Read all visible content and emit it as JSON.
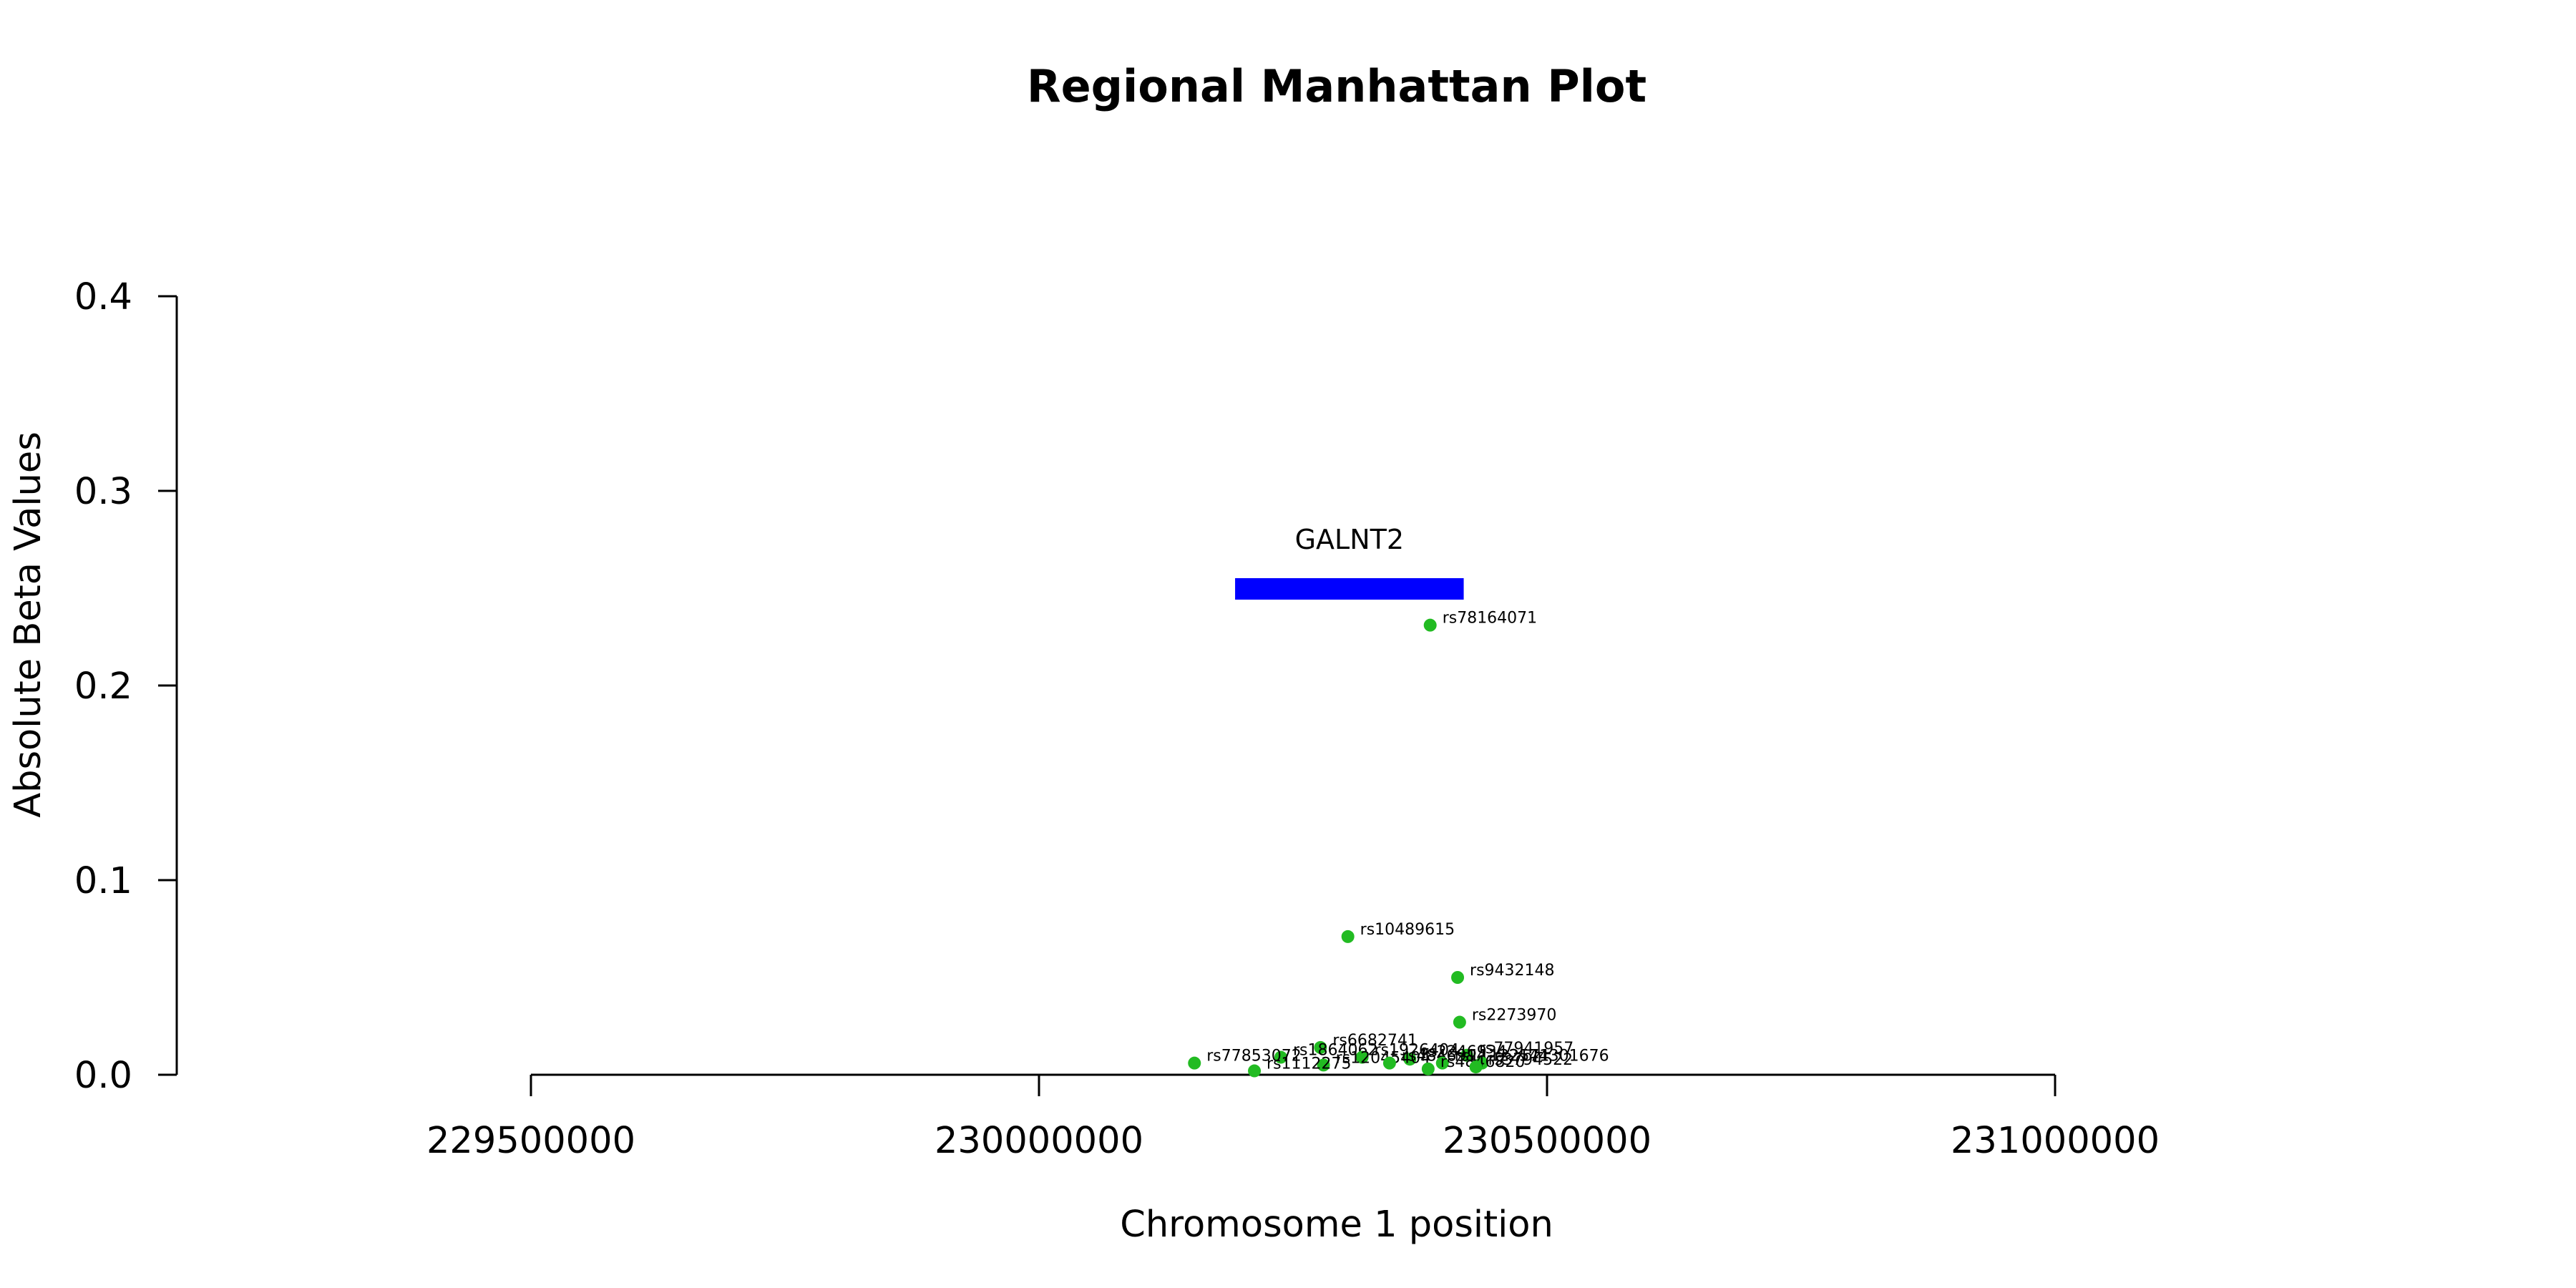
{
  "chart_data": {
    "type": "scatter",
    "title": "Regional Manhattan Plot",
    "xlabel": "Chromosome 1 position",
    "ylabel": "Absolute Beta Values",
    "xlim": [
      229150000,
      231650000
    ],
    "ylim": [
      0,
      0.4
    ],
    "x_ticks": [
      229500000,
      230000000,
      230500000,
      231000000
    ],
    "x_tick_labels": [
      "229500000",
      "230000000",
      "230500000",
      "231000000"
    ],
    "y_ticks": [
      0,
      0.1,
      0.2,
      0.3,
      0.4
    ],
    "y_tick_labels": [
      "0.0",
      "0.1",
      "0.2",
      "0.3",
      "0.4"
    ],
    "point_color": "#22bb22",
    "gene": {
      "name": "GALNT2",
      "start": 230193000,
      "end": 230418000,
      "y": 0.25,
      "color": "#0000ff"
    },
    "points": [
      {
        "label": "rs78164071",
        "x": 230385000,
        "y": 0.231
      },
      {
        "label": "rs10489615",
        "x": 230304000,
        "y": 0.071
      },
      {
        "label": "rs9432148",
        "x": 230412000,
        "y": 0.05
      },
      {
        "label": "rs2273970",
        "x": 230414000,
        "y": 0.027
      },
      {
        "label": "rs6682741",
        "x": 230277000,
        "y": 0.014
      },
      {
        "label": "rs77941957",
        "x": 230421000,
        "y": 0.01
      },
      {
        "label": "rs1864062",
        "x": 230238000,
        "y": 0.009
      },
      {
        "label": "rs1926404",
        "x": 230318000,
        "y": 0.009
      },
      {
        "label": "rs2246934",
        "x": 230365000,
        "y": 0.008
      },
      {
        "label": "rs77853072",
        "x": 230153000,
        "y": 0.006
      },
      {
        "label": "rs12045404",
        "x": 230280000,
        "y": 0.005
      },
      {
        "label": "rs4846914",
        "x": 230345000,
        "y": 0.006
      },
      {
        "label": "rs11122571",
        "x": 230397000,
        "y": 0.006
      },
      {
        "label": "rs2144301676",
        "x": 230436000,
        "y": 0.006
      },
      {
        "label": "rs1112275",
        "x": 230212000,
        "y": 0.002
      },
      {
        "label": "rs4846820",
        "x": 230383000,
        "y": 0.003
      },
      {
        "label": "rs3794522",
        "x": 230430000,
        "y": 0.004
      }
    ]
  }
}
